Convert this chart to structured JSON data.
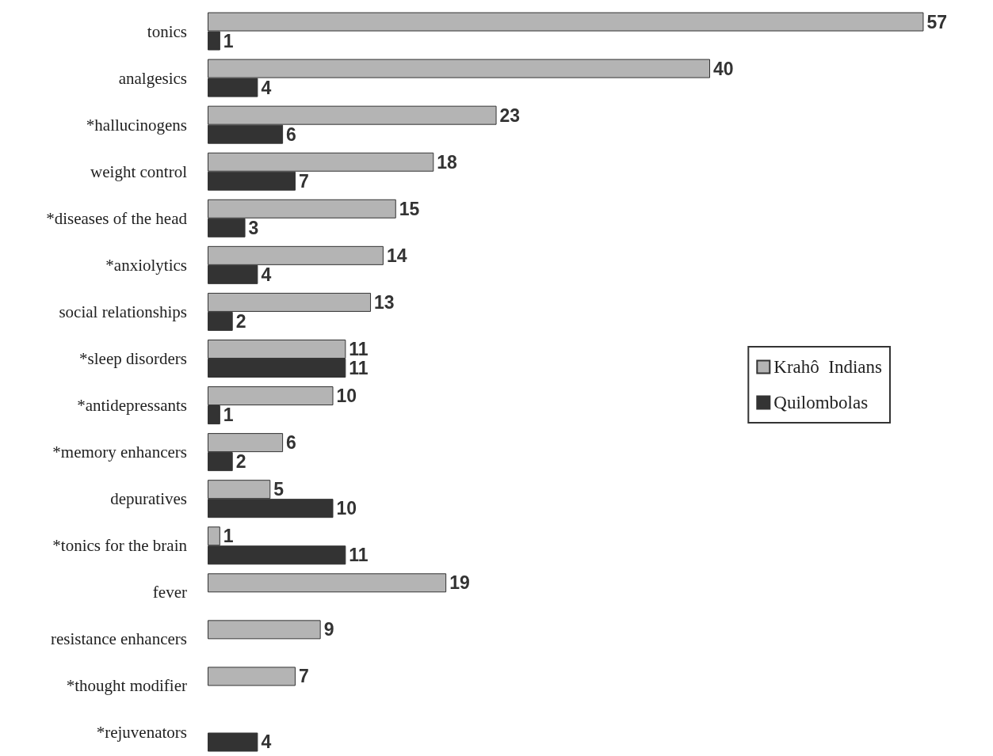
{
  "chart_data": {
    "type": "bar",
    "orientation": "horizontal",
    "categories": [
      "tonics",
      "analgesics",
      "*hallucinogens",
      "weight control",
      "*diseases of the head",
      "*anxiolytics",
      "social relationships",
      "*sleep disorders",
      "*antidepressants",
      "*memory enhancers",
      "depuratives",
      "*tonics for the brain",
      "fever",
      "resistance enhancers",
      "*thought modifier",
      "*rejuvenators"
    ],
    "series": [
      {
        "name": "Krahô  Indians",
        "color": "#b4b4b4",
        "values": [
          57,
          40,
          23,
          18,
          15,
          14,
          13,
          11,
          10,
          6,
          5,
          1,
          19,
          9,
          7,
          null
        ]
      },
      {
        "name": "Quilombolas",
        "color": "#333333",
        "values": [
          1,
          4,
          6,
          7,
          3,
          4,
          2,
          11,
          1,
          2,
          10,
          11,
          null,
          null,
          null,
          4
        ]
      }
    ],
    "data_labels": true,
    "legend": "right",
    "tick_labels": "y"
  }
}
